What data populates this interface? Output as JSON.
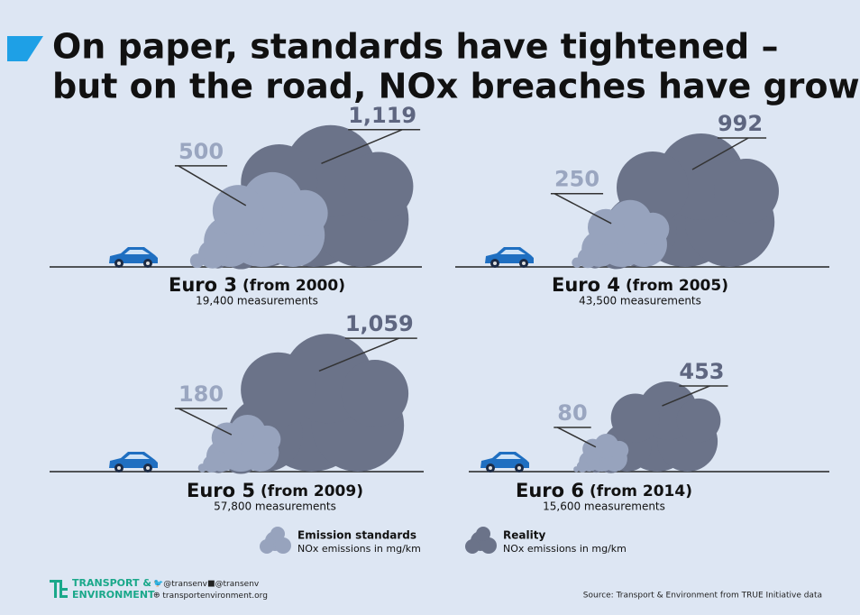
{
  "chart_data": {
    "type": "cloud",
    "title_lines": [
      "On paper, standards have tightened –",
      "but on the road, NOx breaches have grown"
    ],
    "categories": [
      "Euro 3",
      "Euro 4",
      "Euro 5",
      "Euro 6"
    ],
    "periods": [
      "(from 2000)",
      "(from 2005)",
      "(from 2009)",
      "(from 2014)"
    ],
    "measurements": [
      "19,400 measurements",
      "43,500 measurements",
      "57,800 measurements",
      "15,600 measurements"
    ],
    "series": [
      {
        "name": "Emission standards",
        "color": "#97a3bd",
        "label_color": "#9aa6c0",
        "values": [
          500,
          250,
          180,
          80
        ]
      },
      {
        "name": "Reality",
        "color": "#6b7389",
        "label_color": "#5e6680",
        "values": [
          1119,
          992,
          1059,
          453
        ],
        "value_labels": [
          "1,119",
          "992",
          "1,059",
          "453"
        ]
      }
    ],
    "legend_note": "NOx emissions in mg/km",
    "footer": {
      "brand": [
        "TRANSPORT &",
        "ENVIRONMENT"
      ],
      "twitter": "@transenv",
      "facebook": "@transenv",
      "website": "transportenvironment.org",
      "source": "Source: Transport & Environment from TRUE Initiative data"
    }
  }
}
